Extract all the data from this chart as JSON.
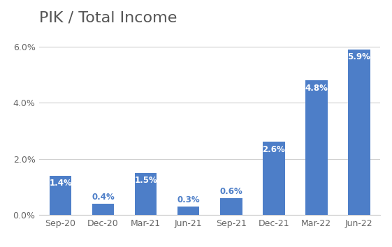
{
  "title": "PIK / Total Income",
  "categories": [
    "Sep-20",
    "Dec-20",
    "Mar-21",
    "Jun-21",
    "Sep-21",
    "Dec-21",
    "Mar-22",
    "Jun-22"
  ],
  "values": [
    1.4,
    0.4,
    1.5,
    0.3,
    0.6,
    2.6,
    4.8,
    5.9
  ],
  "bar_color": "#4D7EC8",
  "label_color_inside": "#ffffff",
  "label_color_outside": "#4D7EC8",
  "ylim": [
    0,
    6.6
  ],
  "yticks": [
    0.0,
    2.0,
    4.0,
    6.0
  ],
  "ytick_labels": [
    "0.0%",
    "2.0%",
    "4.0%",
    "6.0%"
  ],
  "title_fontsize": 16,
  "bar_label_fontsize": 8.5,
  "axis_label_fontsize": 9,
  "background_color": "#ffffff",
  "plot_bg_color": "#f8f8f8",
  "grid_color": "#d0d0d0",
  "bar_width": 0.52,
  "inside_threshold": 0.8
}
